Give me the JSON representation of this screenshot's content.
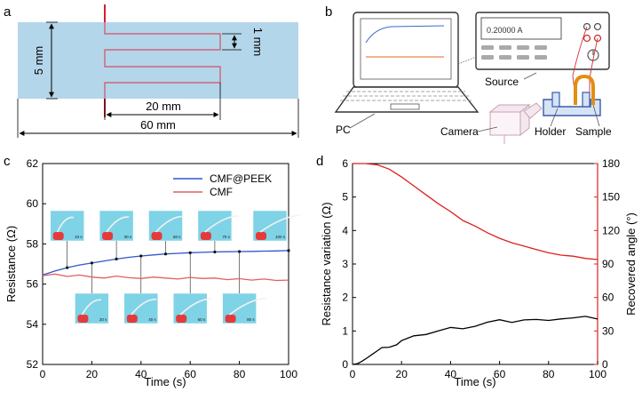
{
  "panels": {
    "a": {
      "label": "a",
      "dims": {
        "height": "5 mm",
        "gap": "1 mm",
        "inner": "20 mm",
        "width": "60 mm"
      },
      "colors": {
        "substrate": "#b4d6ea",
        "trace": "#d05060",
        "arrow": "#000000"
      }
    },
    "b": {
      "label": "b",
      "source_display": "0.20000 A",
      "labels": {
        "source": "Source",
        "pc": "PC",
        "camera": "Camera",
        "holder": "Holder",
        "sample": "Sample"
      },
      "colors": {
        "sample": "#e38e14",
        "holder": "#3a5aa8",
        "camera": "#c8a0b4"
      }
    },
    "c": {
      "label": "c",
      "inset_labels": [
        "10 s",
        "30 s",
        "50 s",
        "70 s",
        "100 s",
        "20 s",
        "40 s",
        "60 s",
        "80 s"
      ]
    },
    "d": {
      "label": "d"
    }
  },
  "chart_data": [
    {
      "panel": "c",
      "type": "line",
      "title": "",
      "xlabel": "Time (s)",
      "ylabel": "Resistance (Ω)",
      "xlim": [
        0,
        100
      ],
      "ylim": [
        52,
        62
      ],
      "xticks": [
        0,
        20,
        40,
        60,
        80,
        100
      ],
      "yticks": [
        52,
        54,
        56,
        58,
        60,
        62
      ],
      "legend_position": "top-right",
      "series": [
        {
          "name": "CMF@PEEK",
          "color": "#3355cc",
          "x": [
            0,
            5,
            10,
            15,
            20,
            25,
            30,
            35,
            40,
            45,
            50,
            55,
            60,
            65,
            70,
            75,
            80,
            85,
            90,
            95,
            100
          ],
          "y": [
            56.45,
            56.65,
            56.82,
            56.95,
            57.05,
            57.15,
            57.25,
            57.33,
            57.4,
            57.45,
            57.5,
            57.53,
            57.56,
            57.58,
            57.6,
            57.61,
            57.62,
            57.63,
            57.64,
            57.65,
            57.67
          ]
        },
        {
          "name": "CMF",
          "color": "#e06060",
          "x": [
            0,
            5,
            10,
            15,
            20,
            25,
            30,
            35,
            40,
            45,
            50,
            55,
            60,
            65,
            70,
            75,
            80,
            85,
            90,
            95,
            100
          ],
          "y": [
            56.42,
            56.5,
            56.38,
            56.45,
            56.35,
            56.3,
            56.4,
            56.32,
            56.28,
            56.35,
            56.3,
            56.25,
            56.33,
            56.28,
            56.3,
            56.22,
            56.27,
            56.2,
            56.25,
            56.18,
            56.2
          ]
        }
      ],
      "markers_x": [
        10,
        20,
        30,
        40,
        50,
        60,
        70,
        80,
        100
      ]
    },
    {
      "panel": "d",
      "type": "line",
      "title": "",
      "xlabel": "Time (s)",
      "ylabel": "Resistance variation (Ω)",
      "y2label": "Recovered angle (°)",
      "xlim": [
        0,
        100
      ],
      "ylim": [
        0,
        6
      ],
      "y2lim": [
        0,
        180
      ],
      "xticks": [
        0,
        20,
        40,
        60,
        80,
        100
      ],
      "yticks": [
        0,
        1,
        2,
        3,
        4,
        5,
        6
      ],
      "y2ticks": [
        0,
        30,
        60,
        90,
        120,
        150,
        180
      ],
      "series": [
        {
          "name": "",
          "axis": "left",
          "color": "#000000",
          "x": [
            0,
            2,
            4,
            6,
            8,
            10,
            12,
            15,
            18,
            20,
            25,
            30,
            35,
            40,
            45,
            50,
            55,
            60,
            65,
            70,
            75,
            80,
            85,
            90,
            95,
            100
          ],
          "y": [
            0.0,
            0.02,
            0.1,
            0.2,
            0.3,
            0.4,
            0.48,
            0.55,
            0.6,
            0.7,
            0.82,
            0.92,
            1.0,
            1.08,
            1.1,
            1.15,
            1.25,
            1.3,
            1.28,
            1.33,
            1.32,
            1.35,
            1.37,
            1.38,
            1.4,
            1.38
          ]
        },
        {
          "name": "",
          "axis": "right",
          "color": "#dd2020",
          "x": [
            0,
            5,
            10,
            15,
            20,
            25,
            30,
            35,
            40,
            45,
            50,
            55,
            60,
            65,
            70,
            75,
            80,
            85,
            90,
            95,
            100
          ],
          "y": [
            180,
            180,
            179,
            175,
            168,
            160,
            152,
            144,
            137,
            129,
            124,
            118,
            113,
            109,
            106,
            103,
            100,
            98,
            97,
            95,
            94
          ]
        }
      ]
    }
  ]
}
